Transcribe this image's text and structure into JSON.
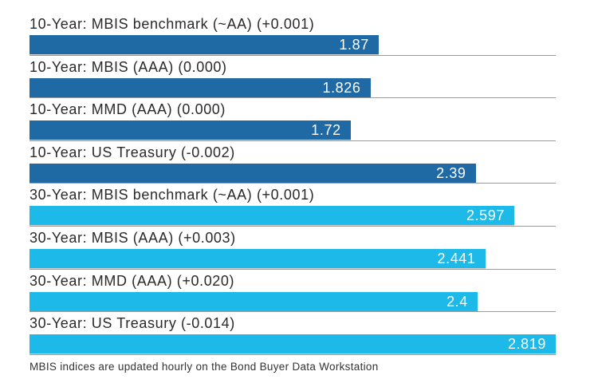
{
  "chart_data": {
    "type": "bar",
    "orientation": "horizontal",
    "title": "",
    "xlabel": "",
    "ylabel": "",
    "grid": false,
    "legend": false,
    "xlim": [
      0,
      2.819
    ],
    "categories": [
      "10-Year: MBIS benchmark (~AA) (+0.001)",
      "10-Year: MBIS (AAA) (0.000)",
      "10-Year: MMD (AAA) (0.000)",
      "10-Year: US Treasury (-0.002)",
      "30-Year: MBIS benchmark (~AA) (+0.001)",
      "30-Year: MBIS (AAA) (+0.003)",
      "30-Year: MMD (AAA) (+0.020)",
      "30-Year: US Treasury (-0.014)"
    ],
    "values": [
      1.87,
      1.826,
      1.72,
      2.39,
      2.597,
      2.441,
      2.4,
      2.819
    ],
    "value_labels": [
      "1.87",
      "1.826",
      "1.72",
      "2.39",
      "2.597",
      "2.441",
      "2.4",
      "2.819"
    ],
    "groups": [
      "10-year",
      "10-year",
      "10-year",
      "10-year",
      "30-year",
      "30-year",
      "30-year",
      "30-year"
    ],
    "colors": {
      "10-year": "#1f6aa5",
      "30-year": "#1db9e8",
      "separator": "#9b9b9b",
      "label_text": "#2a2a2a",
      "value_text": "#ffffff"
    },
    "footnote": "MBIS indices are updated hourly on the Bond Buyer Data Workstation"
  }
}
